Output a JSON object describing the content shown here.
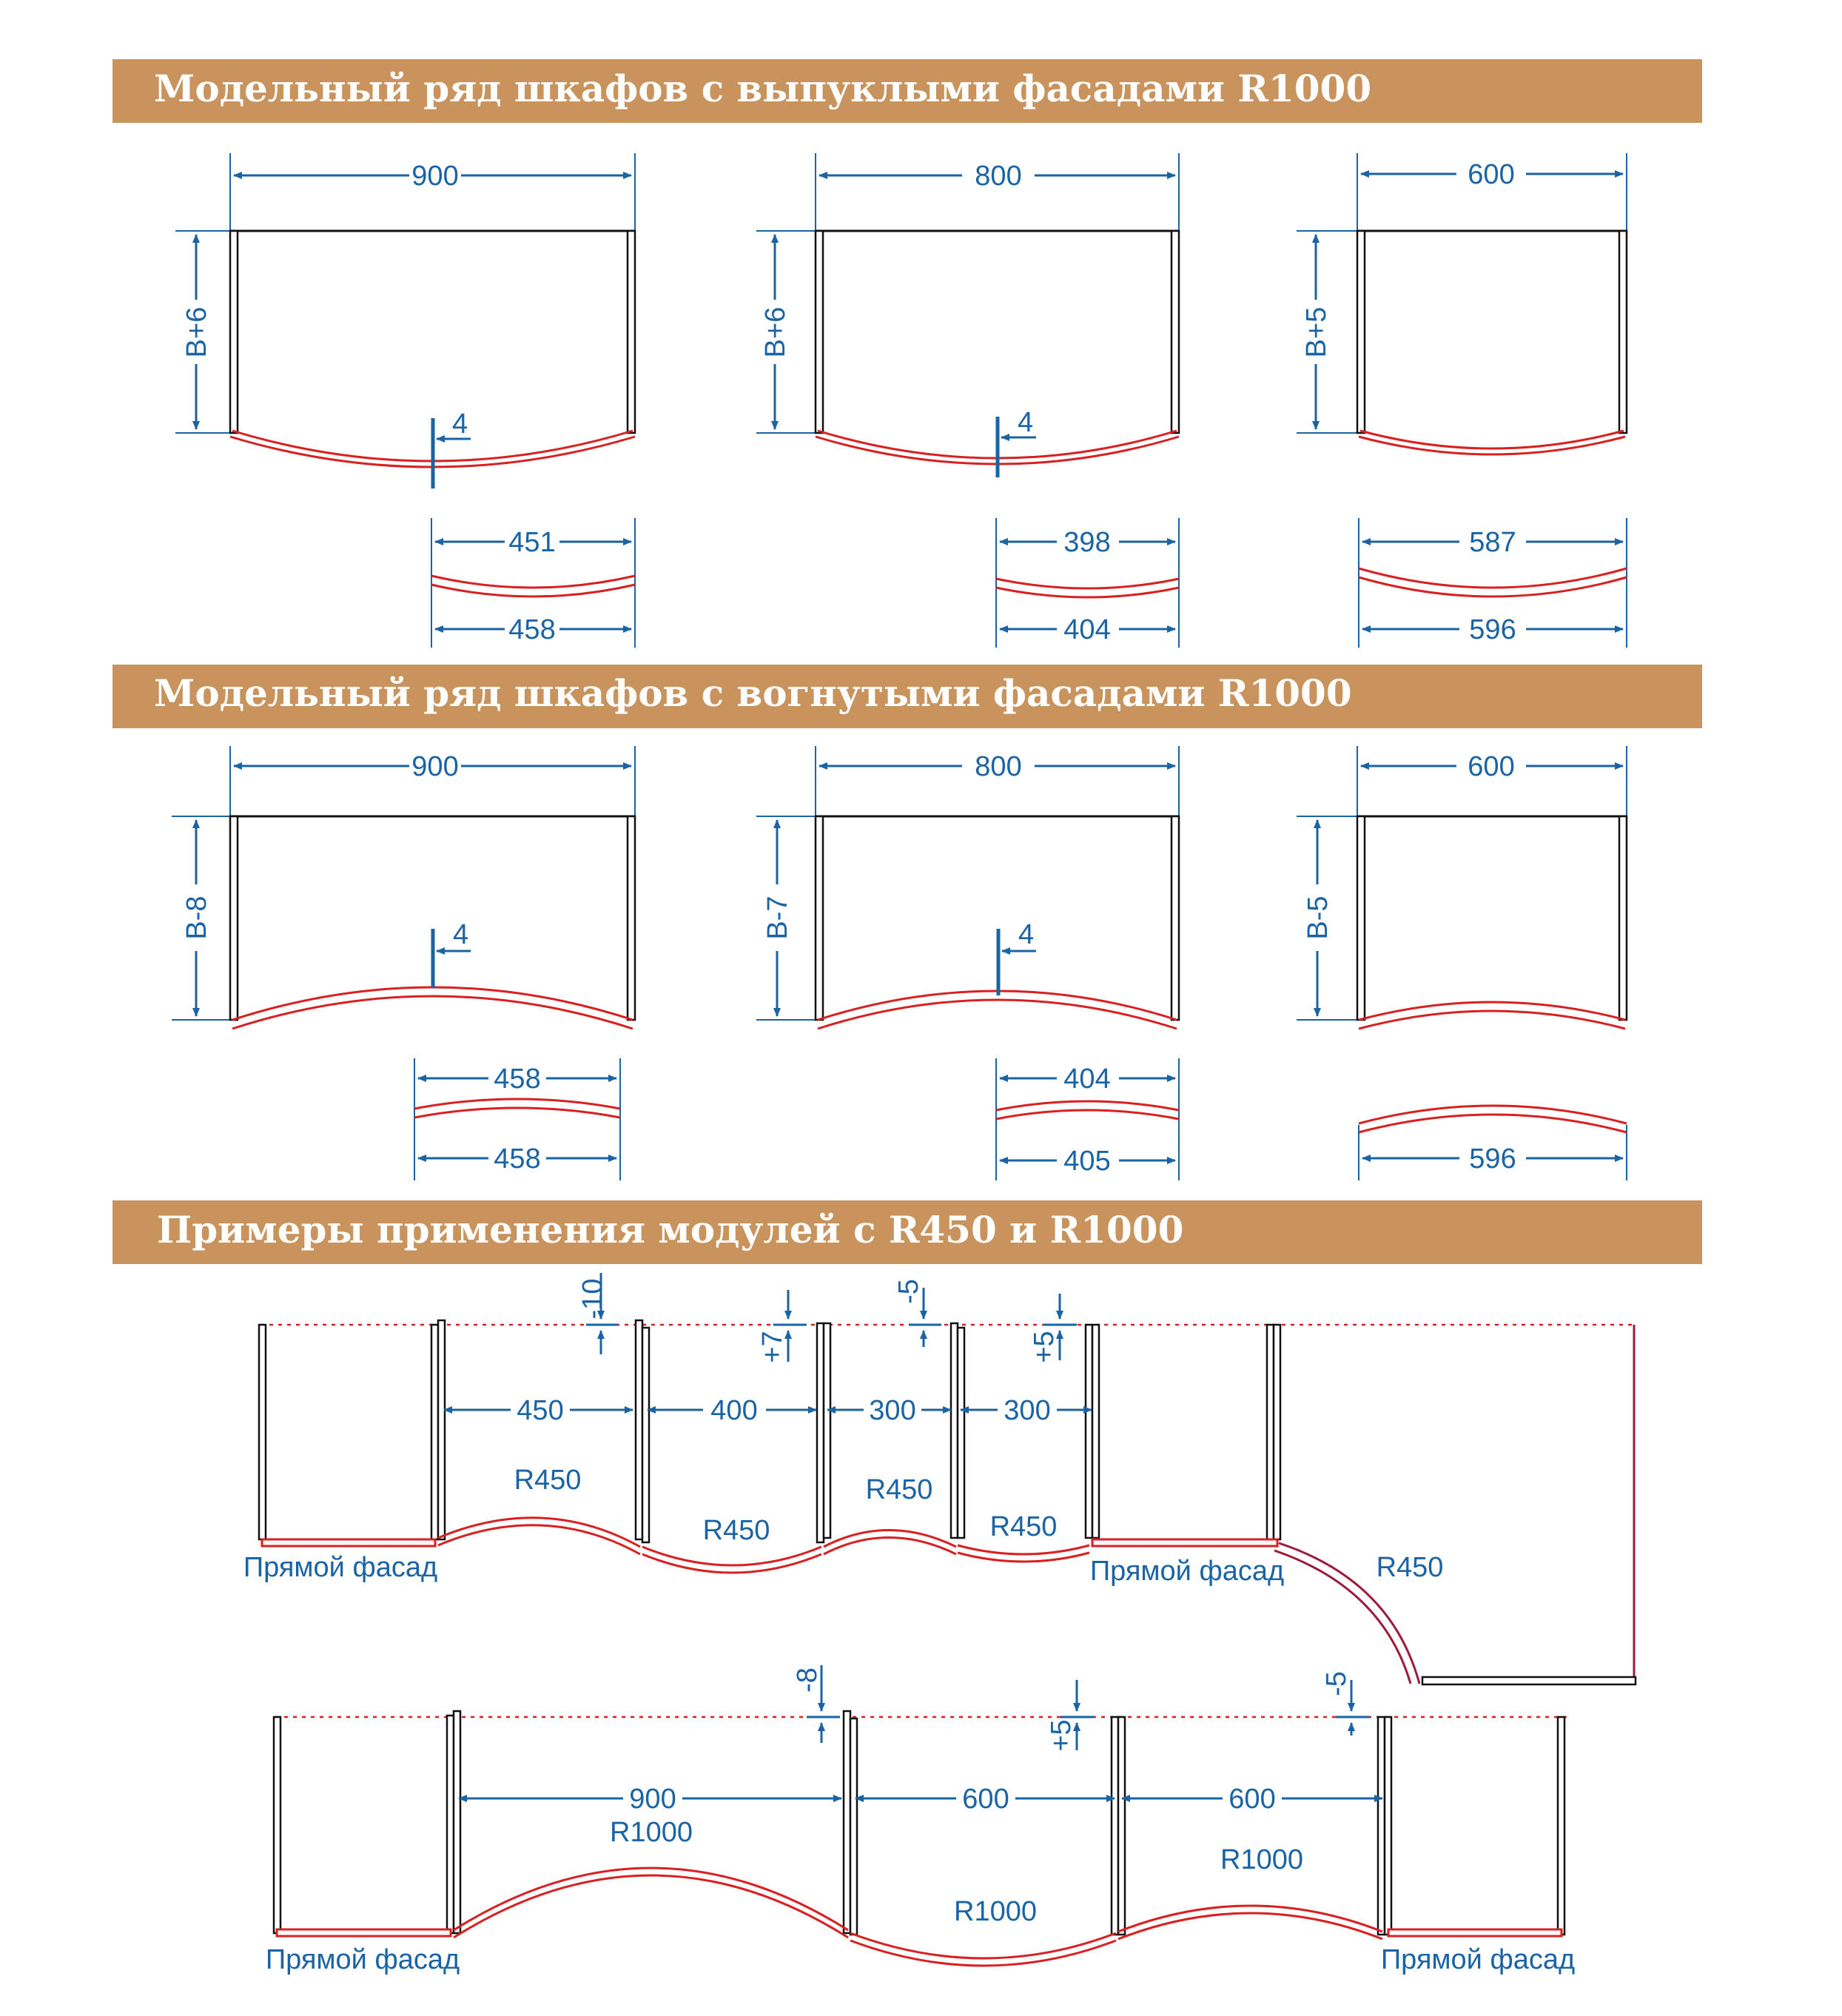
{
  "sections": {
    "convex_title": "Модельный ряд шкафов с выпуклыми фасадами R1000",
    "concave_title": "Модельный ряд шкафов с вогнутыми фасадами R1000",
    "examples_title": "Примеры применения модулей с R450 и R1000"
  },
  "convex": {
    "c1": {
      "width": "900",
      "height": "В+6",
      "sag": "4",
      "top_chord": "451",
      "bottom_chord": "458"
    },
    "c2": {
      "width": "800",
      "height": "В+6",
      "sag": "4",
      "top_chord": "398",
      "bottom_chord": "404"
    },
    "c3": {
      "width": "600",
      "height": "В+5",
      "top_chord": "587",
      "bottom_chord": "596"
    }
  },
  "concave": {
    "c1": {
      "width": "900",
      "height": "В-8",
      "sag": "4",
      "top_chord": "458",
      "bottom_chord": "458"
    },
    "c2": {
      "width": "800",
      "height": "В-7",
      "sag": "4",
      "top_chord": "404",
      "bottom_chord": "405"
    },
    "c3": {
      "width": "600",
      "height": "В-5",
      "bottom_chord": "596"
    }
  },
  "example1": {
    "offsets": [
      "-10",
      "+7",
      "-5",
      "+5"
    ],
    "widths": [
      "450",
      "400",
      "300",
      "300"
    ],
    "radii": [
      "R450",
      "R450",
      "R450",
      "R450",
      "R450"
    ],
    "straight_left": "Прямой фасад",
    "straight_mid": "Прямой фасад"
  },
  "example2": {
    "offsets": [
      "-8",
      "+5",
      "-5"
    ],
    "widths": [
      "900",
      "600",
      "600"
    ],
    "radii": [
      "R1000",
      "R1000",
      "R1000"
    ],
    "straight_left": "Прямой фасад",
    "straight_right": "Прямой фасад"
  },
  "colors": {
    "banner": "#c9935e",
    "dimension": "#1a64a6",
    "facade": "#d92020",
    "body": "#111111"
  }
}
